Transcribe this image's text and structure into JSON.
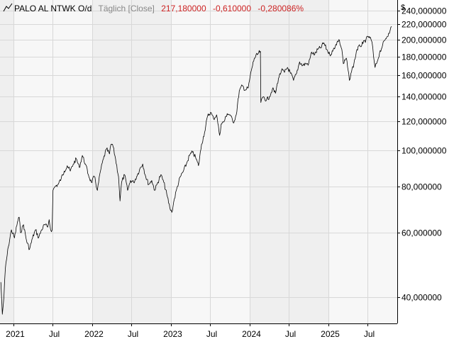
{
  "header": {
    "instrument": "PALO AL NTWK O/d",
    "interval": "Täglich [Close]",
    "last": "217,180000",
    "change_abs": "-0,610000",
    "change_pct": "-0,280086%"
  },
  "colors": {
    "price_line": "#000000",
    "negative_change": "#cc2222",
    "band_light": "#f7f7f7",
    "band_dark": "#efefef",
    "grid": "#d8d8d8",
    "axis": "#000000",
    "header_text": "#000000",
    "interval_text": "#888888"
  },
  "chart_data": {
    "type": "line",
    "y_scale": "log",
    "ylim": [
      34,
      256
    ],
    "xlim": [
      "2020-10-29",
      "2025-11-15"
    ],
    "y_unit": "$",
    "y_ticks": [
      40,
      60,
      80,
      100,
      120,
      140,
      160,
      180,
      200,
      220,
      240
    ],
    "y_tick_labels": [
      "40,000000",
      "60,000000",
      "80,000000",
      "100,000000",
      "120,000000",
      "140,000000",
      "160,000000",
      "180,000000",
      "200,000000",
      "220,000000",
      "240,000000"
    ],
    "x_ticks": [
      "2021-01-01",
      "2021-07-01",
      "2022-01-01",
      "2022-07-01",
      "2023-01-01",
      "2023-07-01",
      "2024-01-01",
      "2024-07-01",
      "2025-01-01",
      "2025-07-01"
    ],
    "x_tick_labels": [
      "2021",
      "Jul",
      "2022",
      "Jul",
      "2023",
      "Jul",
      "2024",
      "Jul",
      "2025",
      "Jul"
    ],
    "grid": true,
    "series": [
      {
        "values": [
          [
            "2020-11-02",
            44
          ],
          [
            "2020-11-09",
            36
          ],
          [
            "2020-11-16",
            40
          ],
          [
            "2020-11-23",
            48
          ],
          [
            "2020-12-07",
            55
          ],
          [
            "2020-12-21",
            61
          ],
          [
            "2021-01-04",
            58
          ],
          [
            "2021-01-18",
            64
          ],
          [
            "2021-01-26",
            66
          ],
          [
            "2021-02-01",
            60
          ],
          [
            "2021-02-15",
            63
          ],
          [
            "2021-03-01",
            57
          ],
          [
            "2021-03-15",
            54
          ],
          [
            "2021-03-29",
            58
          ],
          [
            "2021-04-12",
            61
          ],
          [
            "2021-04-26",
            58
          ],
          [
            "2021-05-10",
            61
          ],
          [
            "2021-05-24",
            63
          ],
          [
            "2021-06-07",
            62
          ],
          [
            "2021-06-14",
            65
          ],
          [
            "2021-06-21",
            61
          ],
          [
            "2021-06-28",
            61
          ],
          [
            "2021-07-02",
            78
          ],
          [
            "2021-07-12",
            80
          ],
          [
            "2021-07-26",
            81
          ],
          [
            "2021-08-09",
            84
          ],
          [
            "2021-08-23",
            88
          ],
          [
            "2021-09-06",
            91
          ],
          [
            "2021-09-20",
            88
          ],
          [
            "2021-10-04",
            92
          ],
          [
            "2021-10-18",
            95
          ],
          [
            "2021-11-01",
            90
          ],
          [
            "2021-11-15",
            97
          ],
          [
            "2021-11-29",
            92
          ],
          [
            "2021-12-13",
            86
          ],
          [
            "2021-12-27",
            82
          ],
          [
            "2022-01-10",
            85
          ],
          [
            "2022-01-24",
            78
          ],
          [
            "2022-02-07",
            88
          ],
          [
            "2022-02-21",
            95
          ],
          [
            "2022-03-07",
            101
          ],
          [
            "2022-03-21",
            98
          ],
          [
            "2022-03-28",
            104
          ],
          [
            "2022-04-04",
            104
          ],
          [
            "2022-04-18",
            95
          ],
          [
            "2022-05-02",
            85
          ],
          [
            "2022-05-09",
            73
          ],
          [
            "2022-05-16",
            82
          ],
          [
            "2022-05-30",
            86
          ],
          [
            "2022-06-13",
            78
          ],
          [
            "2022-06-27",
            83
          ],
          [
            "2022-07-11",
            82
          ],
          [
            "2022-07-25",
            85
          ],
          [
            "2022-08-08",
            89
          ],
          [
            "2022-08-22",
            92
          ],
          [
            "2022-09-05",
            85
          ],
          [
            "2022-09-19",
            81
          ],
          [
            "2022-10-03",
            83
          ],
          [
            "2022-10-17",
            78
          ],
          [
            "2022-10-31",
            82
          ],
          [
            "2022-11-14",
            86
          ],
          [
            "2022-11-28",
            82
          ],
          [
            "2022-12-12",
            76
          ],
          [
            "2022-12-26",
            70
          ],
          [
            "2023-01-04",
            68
          ],
          [
            "2023-01-16",
            74
          ],
          [
            "2023-01-30",
            80
          ],
          [
            "2023-02-13",
            85
          ],
          [
            "2023-02-27",
            88
          ],
          [
            "2023-03-13",
            92
          ],
          [
            "2023-03-27",
            97
          ],
          [
            "2023-04-10",
            99
          ],
          [
            "2023-04-24",
            96
          ],
          [
            "2023-05-08",
            91
          ],
          [
            "2023-05-22",
            104
          ],
          [
            "2023-06-05",
            112
          ],
          [
            "2023-06-19",
            124
          ],
          [
            "2023-07-03",
            127
          ],
          [
            "2023-07-17",
            122
          ],
          [
            "2023-07-31",
            125
          ],
          [
            "2023-08-14",
            110
          ],
          [
            "2023-08-21",
            118
          ],
          [
            "2023-09-04",
            120
          ],
          [
            "2023-09-18",
            126
          ],
          [
            "2023-10-02",
            125
          ],
          [
            "2023-10-16",
            119
          ],
          [
            "2023-10-30",
            125
          ],
          [
            "2023-11-13",
            145
          ],
          [
            "2023-11-27",
            150
          ],
          [
            "2023-12-11",
            146
          ],
          [
            "2023-12-25",
            148
          ],
          [
            "2024-01-08",
            165
          ],
          [
            "2024-01-22",
            178
          ],
          [
            "2024-02-05",
            182
          ],
          [
            "2024-02-19",
            186
          ],
          [
            "2024-02-21",
            135
          ],
          [
            "2024-03-04",
            140
          ],
          [
            "2024-03-18",
            137
          ],
          [
            "2024-04-01",
            140
          ],
          [
            "2024-04-15",
            147
          ],
          [
            "2024-04-29",
            143
          ],
          [
            "2024-05-13",
            157
          ],
          [
            "2024-05-27",
            165
          ],
          [
            "2024-06-10",
            163
          ],
          [
            "2024-06-24",
            168
          ],
          [
            "2024-07-08",
            162
          ],
          [
            "2024-07-22",
            155
          ],
          [
            "2024-08-05",
            162
          ],
          [
            "2024-08-19",
            174
          ],
          [
            "2024-09-02",
            170
          ],
          [
            "2024-09-16",
            172
          ],
          [
            "2024-09-30",
            172
          ],
          [
            "2024-10-14",
            185
          ],
          [
            "2024-10-28",
            182
          ],
          [
            "2024-11-11",
            188
          ],
          [
            "2024-11-25",
            190
          ],
          [
            "2024-12-09",
            196
          ],
          [
            "2024-12-23",
            188
          ],
          [
            "2025-01-06",
            182
          ],
          [
            "2025-01-20",
            186
          ],
          [
            "2025-02-03",
            194
          ],
          [
            "2025-02-17",
            200
          ],
          [
            "2025-03-03",
            188
          ],
          [
            "2025-03-10",
            172
          ],
          [
            "2025-03-24",
            178
          ],
          [
            "2025-04-07",
            155
          ],
          [
            "2025-04-14",
            162
          ],
          [
            "2025-04-28",
            172
          ],
          [
            "2025-05-12",
            188
          ],
          [
            "2025-05-26",
            192
          ],
          [
            "2025-06-09",
            195
          ],
          [
            "2025-06-23",
            200
          ],
          [
            "2025-07-07",
            204
          ],
          [
            "2025-07-21",
            197
          ],
          [
            "2025-07-28",
            180
          ],
          [
            "2025-08-04",
            168
          ],
          [
            "2025-08-11",
            172
          ],
          [
            "2025-08-25",
            184
          ],
          [
            "2025-09-08",
            193
          ],
          [
            "2025-09-22",
            201
          ],
          [
            "2025-10-06",
            208
          ],
          [
            "2025-10-13",
            212
          ],
          [
            "2025-10-20",
            217
          ]
        ]
      }
    ]
  }
}
